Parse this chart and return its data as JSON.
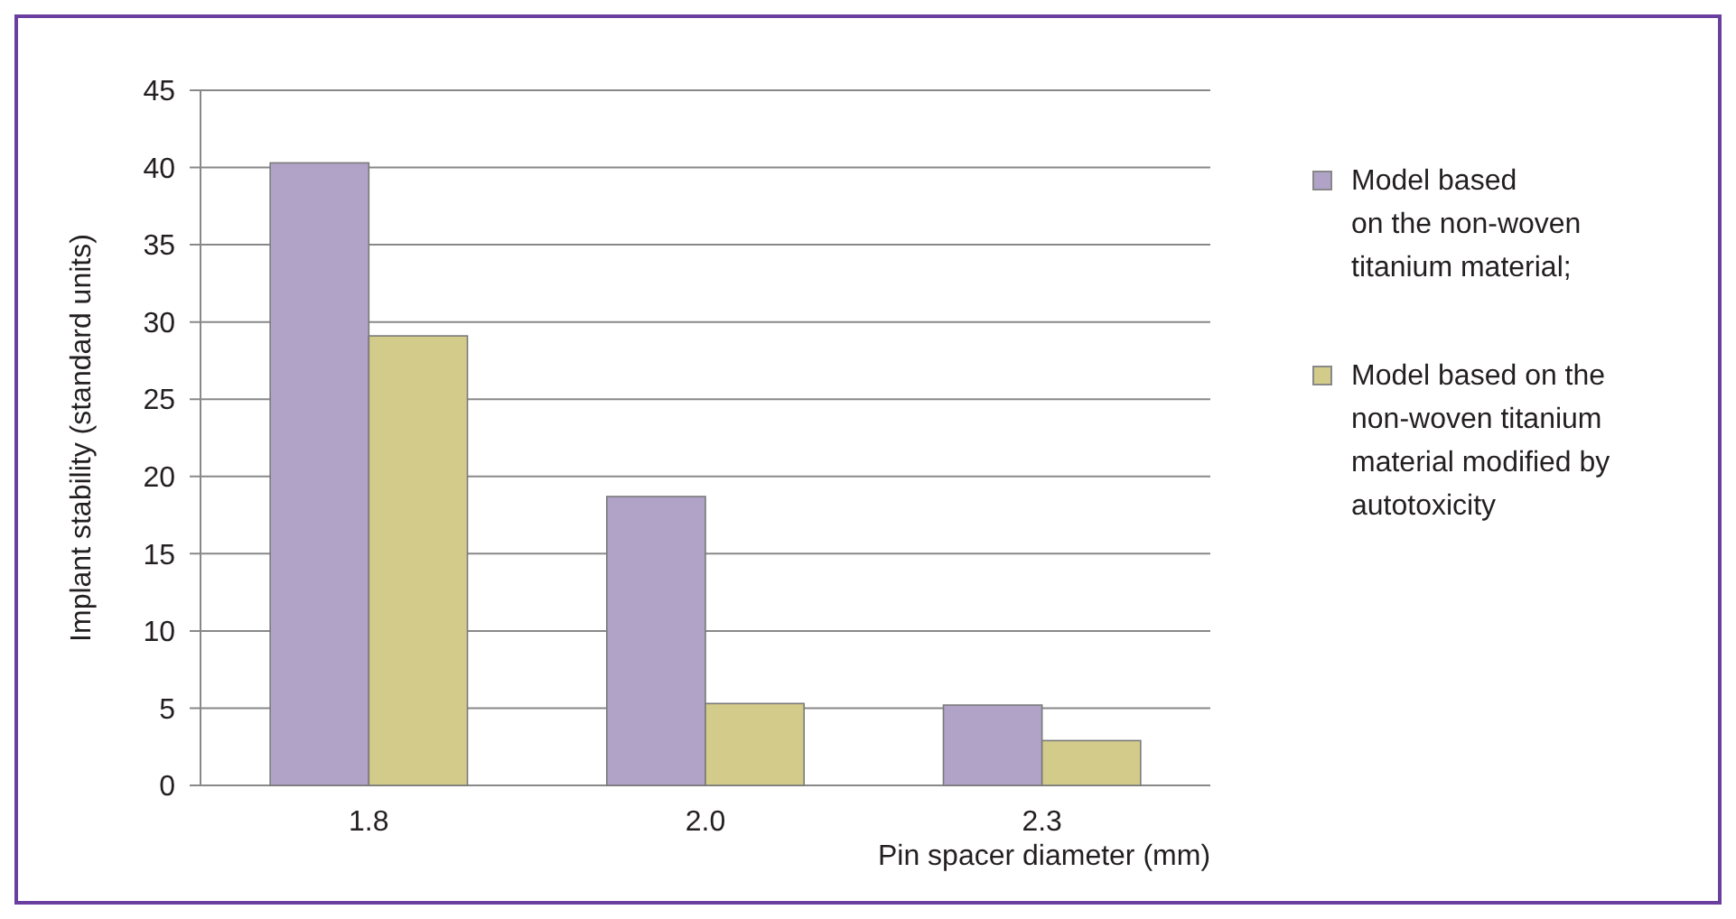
{
  "chart_data": {
    "type": "bar",
    "xlabel": "Pin spacer diameter (mm)",
    "ylabel": "Implant stability (standard units)",
    "categories": [
      "1.8",
      "2.0",
      "2.3"
    ],
    "series": [
      {
        "name": "Model based\non the non-woven\ntitanium material;",
        "color": "#b1a2c8",
        "values": [
          40.3,
          18.7,
          5.2
        ]
      },
      {
        "name": "Model based on the\nnon-woven titanium\nmaterial modified by\nautotoxicity",
        "color": "#d3cb8a",
        "values": [
          29.1,
          5.3,
          2.9
        ]
      }
    ],
    "ylim": [
      0,
      45
    ],
    "yticks": [
      0,
      5,
      10,
      15,
      20,
      25,
      30,
      35,
      40,
      45
    ],
    "grid": "y",
    "legend": "right"
  }
}
